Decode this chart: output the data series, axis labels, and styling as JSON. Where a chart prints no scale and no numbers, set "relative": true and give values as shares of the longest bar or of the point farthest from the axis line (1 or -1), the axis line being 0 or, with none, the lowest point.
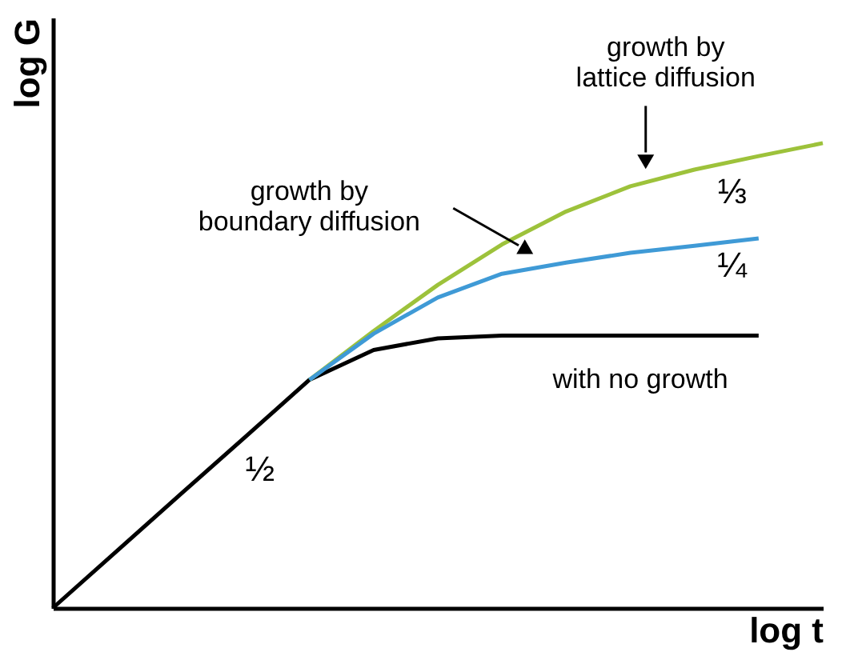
{
  "chart_data": {
    "type": "line",
    "relative": true,
    "xlabel": "log t",
    "ylabel": "log G",
    "line_style": "solid",
    "categories": [
      null,
      null,
      null,
      null,
      null,
      null,
      null,
      null,
      null,
      null,
      null,
      null,
      null
    ],
    "series": [
      {
        "color": "#000000",
        "values": [
          0,
          0.123,
          0.246,
          0.368,
          0.491,
          0.555,
          0.58,
          0.586,
          0.586,
          0.586,
          0.586,
          0.586,
          null
        ]
      },
      {
        "color": "#9dc23b",
        "values": [
          null,
          null,
          null,
          null,
          0.491,
          0.596,
          0.695,
          0.782,
          0.853,
          0.907,
          0.943,
          0.972,
          1.0
        ]
      },
      {
        "color": "#3f9ad6",
        "values": [
          null,
          null,
          null,
          null,
          0.491,
          0.59,
          0.668,
          0.719,
          0.743,
          0.764,
          0.779,
          0.795,
          null
        ]
      }
    ],
    "annotations": [
      "growth by\nlattice diffusion",
      "growth by\nboundary diffusion",
      "with no growth",
      "½",
      "⅓",
      "¼"
    ]
  }
}
